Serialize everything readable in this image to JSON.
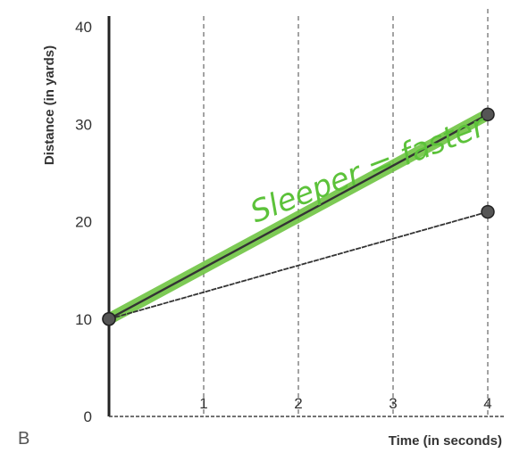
{
  "chart_data": {
    "type": "line",
    "title": "",
    "xlabel": "Time (in seconds)",
    "ylabel": "Distance (in yards)",
    "xlim": [
      0,
      4
    ],
    "ylim": [
      0,
      40
    ],
    "x_ticks": [
      "1",
      "2",
      "3",
      "4"
    ],
    "y_ticks": [
      "0",
      "10",
      "20",
      "30",
      "40"
    ],
    "grid": "dashed vertical lines at x = 1, 2, 3, 4",
    "series": [
      {
        "x": [
          0,
          4
        ],
        "y": [
          10,
          31
        ],
        "color": "#333333",
        "highlight_color": "#6fc442"
      },
      {
        "x": [
          0,
          4
        ],
        "y": [
          10,
          21
        ],
        "color": "#333333"
      }
    ],
    "panel_label": "B",
    "annotation": "Sleeper = faster"
  }
}
